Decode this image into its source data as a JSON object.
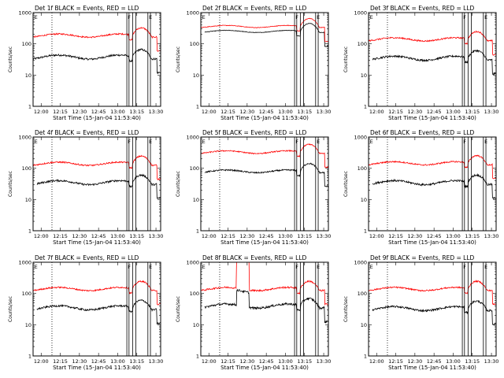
{
  "chart_data": {
    "type": "line",
    "layout": "3x3 grid of small multiples",
    "legend_text": "BLACK = Events, RED = LLD",
    "xlabel": "Start Time (15-Jan-04 11:53:40)",
    "ylabel": "Counts/sec",
    "xlim_minutes_after_start": [
      0,
      100
    ],
    "x_tick_labels": [
      "12:00",
      "12:15",
      "12:30",
      "12:45",
      "13:00",
      "13:15",
      "13:30"
    ],
    "x_tick_minutes_after_start": [
      6.33,
      21.33,
      36.33,
      51.33,
      66.33,
      81.33,
      96.33
    ],
    "y_scale": "log",
    "ylim": [
      1,
      1000
    ],
    "y_tick_labels": [
      "1",
      "10",
      "100",
      "1000"
    ],
    "y_tick_values": [
      1,
      10,
      100,
      1000
    ],
    "marker_labels": [
      "E",
      "F",
      "E"
    ],
    "series_names": [
      "Events",
      "LLD"
    ],
    "series_colors": [
      "#000000",
      "#ff0000"
    ],
    "panels": [
      {
        "title": "Det 1f BLACK = Events, RED = LLD",
        "dotted_line_minutes": 14.8,
        "marker_line_minutes": [
          73.5,
          75.2,
          78.0,
          80.5,
          90.0,
          92.0
        ],
        "events": {
          "base": 38,
          "amp": 0.15,
          "noise": 0.07,
          "start": 0,
          "end": 100
        },
        "lld": {
          "base": 185,
          "amp": 0.12,
          "noise": 0.05,
          "start": 0,
          "end": 100
        }
      },
      {
        "title": "Det 2f BLACK = Events, RED = LLD",
        "dotted_line_minutes": 14.8,
        "marker_line_minutes": [
          73.5,
          75.2,
          78.0,
          80.5,
          90.0,
          92.0
        ],
        "events": {
          "base": 250,
          "amp": 0.08,
          "noise": 0.02,
          "start": 3,
          "end": 100
        },
        "lld": {
          "base": 360,
          "amp": 0.08,
          "noise": 0.02,
          "start": 0,
          "end": 100
        }
      },
      {
        "title": "Det 3f BLACK = Events, RED = LLD",
        "dotted_line_minutes": 14.8,
        "marker_line_minutes": [
          73.5,
          75.2,
          78.0,
          80.5,
          90.0,
          92.0
        ],
        "events": {
          "base": 35,
          "amp": 0.15,
          "noise": 0.07,
          "start": 3,
          "end": 100
        },
        "lld": {
          "base": 140,
          "amp": 0.12,
          "noise": 0.05,
          "start": 0,
          "end": 100
        }
      },
      {
        "title": "Det 4f BLACK = Events, RED = LLD",
        "dotted_line_minutes": 14.8,
        "marker_line_minutes": [
          73.5,
          75.2,
          78.0,
          80.5,
          90.0,
          92.0
        ],
        "events": {
          "base": 35,
          "amp": 0.15,
          "noise": 0.07,
          "start": 3,
          "end": 100
        },
        "lld": {
          "base": 140,
          "amp": 0.12,
          "noise": 0.05,
          "start": 0,
          "end": 100
        }
      },
      {
        "title": "Det 5f BLACK = Events, RED = LLD",
        "dotted_line_minutes": 14.8,
        "marker_line_minutes": [
          73.5,
          75.2,
          78.0,
          80.5,
          90.0,
          92.0
        ],
        "events": {
          "base": 80,
          "amp": 0.1,
          "noise": 0.05,
          "start": 3,
          "end": 100
        },
        "lld": {
          "base": 330,
          "amp": 0.1,
          "noise": 0.04,
          "start": 0,
          "end": 100
        }
      },
      {
        "title": "Det 6f BLACK = Events, RED = LLD",
        "dotted_line_minutes": 14.8,
        "marker_line_minutes": [
          73.5,
          75.2,
          78.0,
          80.5,
          90.0,
          92.0
        ],
        "events": {
          "base": 35,
          "amp": 0.15,
          "noise": 0.07,
          "start": 3,
          "end": 100
        },
        "lld": {
          "base": 145,
          "amp": 0.12,
          "noise": 0.05,
          "start": 0,
          "end": 100
        }
      },
      {
        "title": "Det 7f BLACK = Events, RED = LLD",
        "dotted_line_minutes": 14.8,
        "marker_line_minutes": [
          73.5,
          75.2,
          78.0,
          80.5,
          90.0,
          92.0
        ],
        "events": {
          "base": 35,
          "amp": 0.15,
          "noise": 0.07,
          "start": 3,
          "end": 100
        },
        "lld": {
          "base": 140,
          "amp": 0.12,
          "noise": 0.05,
          "start": 0,
          "end": 100
        }
      },
      {
        "title": "Det 8f BLACK = Events, RED = LLD",
        "dotted_line_minutes": 14.8,
        "marker_line_minutes": [
          73.5,
          75.2,
          78.0,
          80.5,
          90.0,
          92.0
        ],
        "events": {
          "base": 40,
          "amp": 0.15,
          "noise": 0.08,
          "start": 3,
          "end": 100,
          "jump": {
            "from": 28,
            "to": 38,
            "factor": 3
          }
        },
        "lld": {
          "base": 140,
          "amp": 0.12,
          "noise": 0.06,
          "start": 0,
          "end": 100,
          "jump": {
            "from": 28,
            "to": 38,
            "factor": 10
          }
        }
      },
      {
        "title": "Det 9f BLACK = Events, RED = LLD",
        "dotted_line_minutes": 14.8,
        "marker_line_minutes": [
          73.5,
          75.2,
          78.0,
          80.5,
          90.0,
          92.0
        ],
        "events": {
          "base": 33,
          "amp": 0.15,
          "noise": 0.07,
          "start": 3,
          "end": 100
        },
        "lld": {
          "base": 140,
          "amp": 0.12,
          "noise": 0.05,
          "start": 0,
          "end": 100
        }
      }
    ]
  }
}
